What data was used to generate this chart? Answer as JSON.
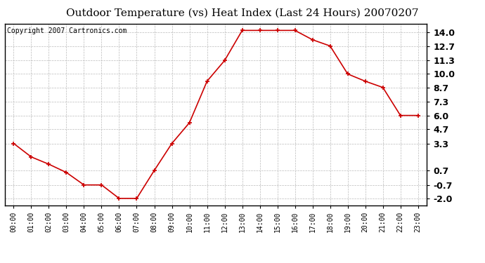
{
  "title": "Outdoor Temperature (vs) Heat Index (Last 24 Hours) 20070207",
  "copyright_text": "Copyright 2007 Cartronics.com",
  "hours": [
    "00:00",
    "01:00",
    "02:00",
    "03:00",
    "04:00",
    "05:00",
    "06:00",
    "07:00",
    "08:00",
    "09:00",
    "10:00",
    "11:00",
    "12:00",
    "13:00",
    "14:00",
    "15:00",
    "16:00",
    "17:00",
    "18:00",
    "19:00",
    "20:00",
    "21:00",
    "22:00",
    "23:00"
  ],
  "values": [
    3.3,
    2.0,
    1.3,
    0.5,
    -0.7,
    -0.7,
    -2.0,
    -2.0,
    0.7,
    3.3,
    5.3,
    9.3,
    11.3,
    14.2,
    14.2,
    14.2,
    14.2,
    13.3,
    12.7,
    10.0,
    9.3,
    8.7,
    6.0,
    6.0
  ],
  "line_color": "#cc0000",
  "marker": "+",
  "marker_size": 5,
  "marker_linewidth": 1.2,
  "line_width": 1.2,
  "ylim": [
    -2.65,
    14.85
  ],
  "yticks": [
    -2.0,
    -0.7,
    0.7,
    3.3,
    4.7,
    6.0,
    7.3,
    8.7,
    10.0,
    11.3,
    12.7,
    14.0
  ],
  "ytick_labels": [
    "-2.0",
    "-0.7",
    "0.7",
    "3.3",
    "4.7",
    "6.0",
    "7.3",
    "8.7",
    "10.0",
    "11.3",
    "12.7",
    "14.0"
  ],
  "background_color": "#ffffff",
  "plot_bg_color": "#ffffff",
  "grid_color": "#bbbbbb",
  "title_fontsize": 11,
  "xtick_fontsize": 7,
  "ytick_fontsize": 9,
  "copyright_fontsize": 7,
  "border_color": "#000000"
}
